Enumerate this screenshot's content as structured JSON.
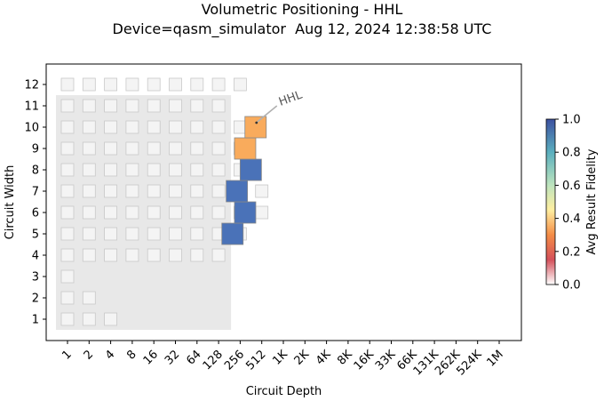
{
  "title": "Volumetric Positioning - HHL",
  "subtitle": "Device=qasm_simulator  Aug 12, 2024 12:38:58 UTC",
  "chart_data": {
    "type": "heatmap",
    "xlabel": "Circuit Depth",
    "ylabel": "Circuit Width",
    "x_scale": "log2",
    "x_ticks": [
      "1",
      "2",
      "4",
      "8",
      "16",
      "32",
      "64",
      "128",
      "256",
      "512",
      "1K",
      "2K",
      "4K",
      "8K",
      "16K",
      "33K",
      "66K",
      "131K",
      "262K",
      "524K",
      "1M"
    ],
    "y_ticks": [
      "1",
      "2",
      "3",
      "4",
      "5",
      "6",
      "7",
      "8",
      "9",
      "10",
      "11",
      "12"
    ],
    "colorbar": {
      "label": "Avg Result Fidelity",
      "ticks": [
        "0.0",
        "0.2",
        "0.4",
        "0.6",
        "0.8",
        "1.0"
      ],
      "range": [
        0,
        1
      ],
      "colormap": "RdYlBu"
    },
    "shaded_region": {
      "max_width": 11,
      "max_depth": 128,
      "color": "#e8e8e8"
    },
    "background_max_depth": [
      4,
      2,
      1,
      128,
      256,
      512,
      512,
      256,
      256,
      256,
      128,
      256
    ],
    "series": [
      {
        "points": [
          {
            "width": 5,
            "depth": 200,
            "fidelity": 0.99
          },
          {
            "width": 6,
            "depth": 300,
            "fidelity": 0.99
          },
          {
            "width": 7,
            "depth": 230,
            "fidelity": 0.99
          },
          {
            "width": 8,
            "depth": 360,
            "fidelity": 0.99
          },
          {
            "width": 9,
            "depth": 300,
            "fidelity": 0.31
          },
          {
            "width": 10,
            "depth": 420,
            "fidelity": 0.31
          }
        ]
      }
    ],
    "annotation": {
      "text": "HHL",
      "width": 10,
      "depth": 420
    }
  }
}
